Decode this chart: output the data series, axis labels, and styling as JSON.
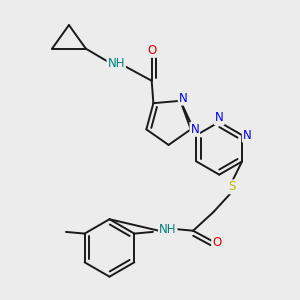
{
  "bg": "#ececec",
  "bond_color": "#1a1a1a",
  "atom_colors": {
    "N": "#0000ee",
    "O": "#ee0000",
    "S": "#bbbb00",
    "H": "#008080"
  },
  "lw": 1.4,
  "fs": 8.5
}
